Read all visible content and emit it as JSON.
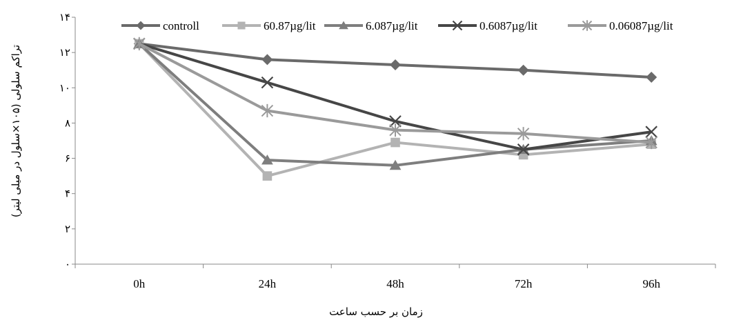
{
  "chart_data": {
    "type": "line",
    "title": "",
    "xlabel": "زمان بر حسب ساعت",
    "ylabel": "تراکم سلولی (۱۰۵×سلول در میلی لیتر)",
    "categories": [
      "0h",
      "24h",
      "48h",
      "72h",
      "96h"
    ],
    "yticks": [
      {
        "value": 0,
        "label": "۰"
      },
      {
        "value": 2,
        "label": "۲"
      },
      {
        "value": 4,
        "label": "۴"
      },
      {
        "value": 6,
        "label": "۶"
      },
      {
        "value": 8,
        "label": "۸"
      },
      {
        "value": 10,
        "label": "۱۰"
      },
      {
        "value": 12,
        "label": "۱۲"
      },
      {
        "value": 14,
        "label": "۱۴"
      }
    ],
    "ylim": [
      0,
      14
    ],
    "grid": false,
    "legend_position": "top",
    "series": [
      {
        "name": "controll",
        "values": [
          12.5,
          11.6,
          11.3,
          11.0,
          10.6
        ],
        "color": "#6a6a6a",
        "marker": "diamond"
      },
      {
        "name": "60.87µg/lit",
        "values": [
          12.5,
          5.0,
          6.9,
          6.2,
          6.8
        ],
        "color": "#b3b3b3",
        "marker": "square"
      },
      {
        "name": "6.087µg/lit",
        "values": [
          12.5,
          5.9,
          5.6,
          6.5,
          7.0
        ],
        "color": "#7e7e7e",
        "marker": "triangle"
      },
      {
        "name": "0.6087µg/lit",
        "values": [
          12.5,
          10.3,
          8.1,
          6.5,
          7.5
        ],
        "color": "#464646",
        "marker": "x"
      },
      {
        "name": "0.06087µg/lit",
        "values": [
          12.5,
          8.7,
          7.6,
          7.4,
          6.9
        ],
        "color": "#9a9a9a",
        "marker": "star"
      }
    ]
  }
}
